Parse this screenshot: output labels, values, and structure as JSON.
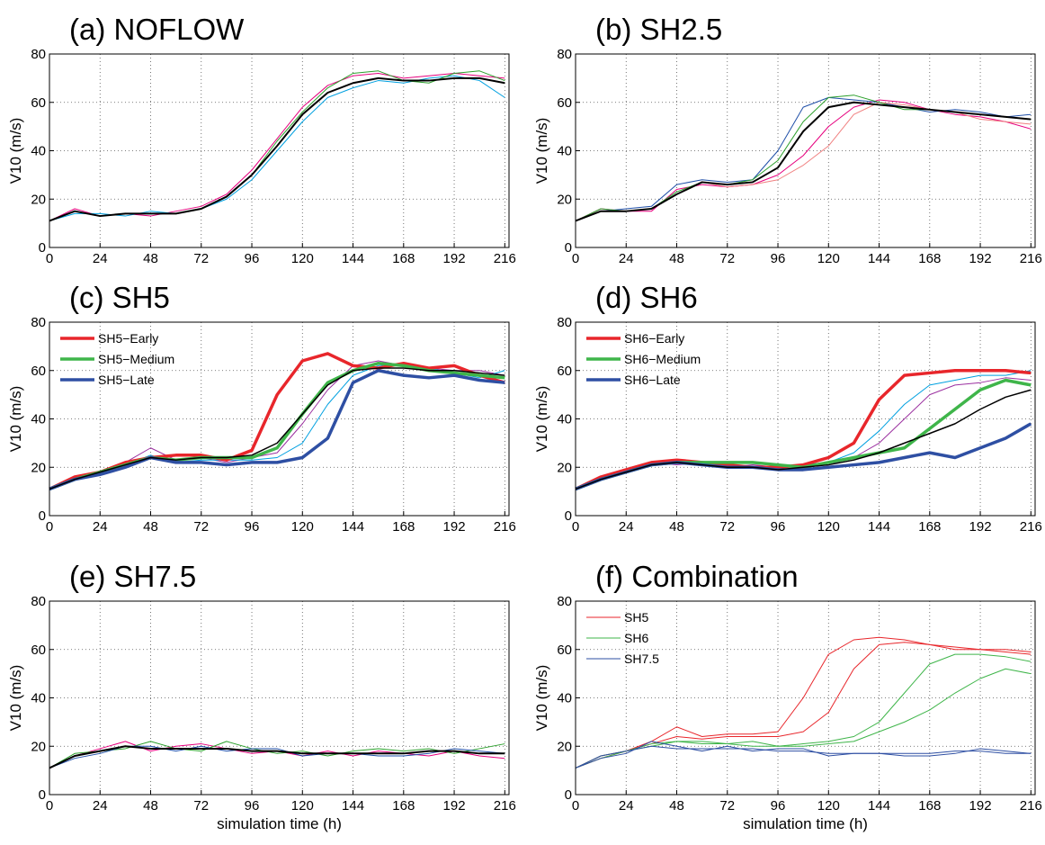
{
  "chart_data": [
    {
      "type": "line",
      "title": "(a) NOFLOW",
      "ylabel": "V10 (m/s)",
      "x": [
        0,
        12,
        24,
        36,
        48,
        60,
        72,
        84,
        96,
        108,
        120,
        132,
        144,
        156,
        168,
        180,
        192,
        204,
        216
      ],
      "xlim": [
        0,
        218
      ],
      "ylim": [
        0,
        80
      ],
      "xticks": [
        0,
        24,
        48,
        72,
        96,
        120,
        144,
        168,
        192,
        216
      ],
      "yticks": [
        0,
        20,
        40,
        60,
        80
      ],
      "grid": true,
      "series": [
        {
          "color": "#e6007e",
          "linewidth": 1,
          "values": [
            11,
            16,
            13,
            14,
            13,
            15,
            17,
            22,
            32,
            45,
            58,
            67,
            71,
            72,
            70,
            71,
            72,
            71,
            70
          ]
        },
        {
          "color": "#00a0e0",
          "linewidth": 1,
          "values": [
            11,
            14,
            14,
            13,
            15,
            14,
            16,
            20,
            28,
            40,
            52,
            62,
            66,
            69,
            68,
            70,
            71,
            69,
            62
          ]
        },
        {
          "color": "#2ca02c",
          "linewidth": 1,
          "values": [
            11,
            15,
            13,
            14,
            14,
            14,
            16,
            21,
            30,
            44,
            56,
            66,
            72,
            73,
            69,
            68,
            72,
            73,
            69
          ]
        },
        {
          "color": "#000000",
          "linewidth": 2,
          "values": [
            11,
            15,
            13,
            14,
            14,
            14,
            16,
            21,
            30,
            42,
            55,
            64,
            68,
            70,
            69,
            69,
            70,
            70,
            68
          ]
        }
      ]
    },
    {
      "type": "line",
      "title": "(b) SH2.5",
      "ylabel": "V10 (m/s)",
      "x": [
        0,
        12,
        24,
        36,
        48,
        60,
        72,
        84,
        96,
        108,
        120,
        132,
        144,
        156,
        168,
        180,
        192,
        204,
        216
      ],
      "xlim": [
        0,
        218
      ],
      "ylim": [
        0,
        80
      ],
      "xticks": [
        0,
        24,
        48,
        72,
        96,
        120,
        144,
        168,
        192,
        216
      ],
      "yticks": [
        0,
        20,
        40,
        60,
        80
      ],
      "grid": true,
      "series": [
        {
          "color": "#e6007e",
          "linewidth": 1,
          "values": [
            11,
            16,
            15,
            15,
            24,
            26,
            25,
            26,
            30,
            38,
            50,
            58,
            61,
            60,
            57,
            55,
            54,
            52,
            49
          ]
        },
        {
          "color": "#1f4fa8",
          "linewidth": 1,
          "values": [
            11,
            15,
            16,
            17,
            26,
            28,
            27,
            28,
            40,
            58,
            62,
            61,
            60,
            58,
            56,
            57,
            56,
            54,
            55
          ]
        },
        {
          "color": "#f08080",
          "linewidth": 1,
          "values": [
            11,
            15,
            15,
            16,
            22,
            27,
            25,
            26,
            28,
            34,
            42,
            55,
            60,
            59,
            57,
            56,
            53,
            52,
            51
          ]
        },
        {
          "color": "#2ca02c",
          "linewidth": 1,
          "values": [
            11,
            16,
            15,
            16,
            23,
            27,
            26,
            28,
            36,
            52,
            62,
            63,
            60,
            57,
            57,
            56,
            55,
            54,
            53
          ]
        },
        {
          "color": "#000000",
          "linewidth": 2,
          "values": [
            11,
            15,
            15,
            16,
            22,
            27,
            26,
            27,
            33,
            48,
            58,
            60,
            59,
            58,
            57,
            56,
            55,
            54,
            53
          ]
        }
      ]
    },
    {
      "type": "line",
      "title": "(c) SH5",
      "ylabel": "V10 (m/s)",
      "x": [
        0,
        12,
        24,
        36,
        48,
        60,
        72,
        84,
        96,
        108,
        120,
        132,
        144,
        156,
        168,
        180,
        192,
        204,
        216
      ],
      "xlim": [
        0,
        218
      ],
      "ylim": [
        0,
        80
      ],
      "xticks": [
        0,
        24,
        48,
        72,
        96,
        120,
        144,
        168,
        192,
        216
      ],
      "yticks": [
        0,
        20,
        40,
        60,
        80
      ],
      "grid": true,
      "legend": "upper-left",
      "series": [
        {
          "color": "#9b30a0",
          "linewidth": 1,
          "values": [
            11,
            16,
            18,
            22,
            28,
            23,
            24,
            22,
            24,
            26,
            38,
            52,
            62,
            64,
            62,
            61,
            60,
            60,
            58
          ]
        },
        {
          "color": "#00a0e0",
          "linewidth": 1,
          "values": [
            11,
            15,
            17,
            21,
            25,
            22,
            23,
            23,
            23,
            24,
            30,
            46,
            58,
            62,
            63,
            61,
            59,
            57,
            60
          ]
        },
        {
          "name": "SH5−Early",
          "color": "#e8262b",
          "linewidth": 3.5,
          "values": [
            11,
            16,
            18,
            22,
            24,
            25,
            25,
            23,
            27,
            50,
            64,
            67,
            62,
            61,
            63,
            61,
            62,
            58,
            55
          ]
        },
        {
          "name": "SH5−Medium",
          "color": "#3fb54a",
          "linewidth": 3.5,
          "values": [
            11,
            15,
            18,
            21,
            24,
            23,
            24,
            24,
            24,
            28,
            42,
            55,
            60,
            63,
            62,
            60,
            59,
            58,
            57
          ]
        },
        {
          "name": "SH5−Late",
          "color": "#2e4fa3",
          "linewidth": 3.5,
          "values": [
            11,
            15,
            17,
            20,
            24,
            22,
            22,
            21,
            22,
            22,
            24,
            32,
            55,
            60,
            58,
            57,
            58,
            56,
            55
          ]
        },
        {
          "color": "#000000",
          "linewidth": 1.5,
          "values": [
            11,
            15,
            18,
            21,
            24,
            23,
            24,
            24,
            25,
            30,
            42,
            54,
            60,
            61,
            61,
            60,
            60,
            59,
            58
          ]
        }
      ]
    },
    {
      "type": "line",
      "title": "(d) SH6",
      "ylabel": "V10 (m/s)",
      "x": [
        0,
        12,
        24,
        36,
        48,
        60,
        72,
        84,
        96,
        108,
        120,
        132,
        144,
        156,
        168,
        180,
        192,
        204,
        216
      ],
      "xlim": [
        0,
        218
      ],
      "ylim": [
        0,
        80
      ],
      "xticks": [
        0,
        24,
        48,
        72,
        96,
        120,
        144,
        168,
        192,
        216
      ],
      "yticks": [
        0,
        20,
        40,
        60,
        80
      ],
      "grid": true,
      "legend": "upper-left",
      "series": [
        {
          "color": "#00a0e0",
          "linewidth": 1,
          "values": [
            11,
            16,
            18,
            21,
            22,
            21,
            21,
            20,
            20,
            21,
            22,
            26,
            35,
            46,
            54,
            56,
            58,
            58,
            60
          ]
        },
        {
          "color": "#9b30a0",
          "linewidth": 1,
          "values": [
            11,
            15,
            18,
            22,
            21,
            22,
            20,
            21,
            20,
            20,
            21,
            24,
            30,
            40,
            50,
            54,
            55,
            57,
            56
          ]
        },
        {
          "name": "SH6−Early",
          "color": "#e8262b",
          "linewidth": 3.5,
          "values": [
            11,
            16,
            19,
            22,
            23,
            22,
            21,
            20,
            20,
            21,
            24,
            30,
            48,
            58,
            59,
            60,
            60,
            60,
            59
          ]
        },
        {
          "name": "SH6−Medium",
          "color": "#3fb54a",
          "linewidth": 3.5,
          "values": [
            11,
            15,
            18,
            21,
            22,
            22,
            22,
            22,
            21,
            20,
            22,
            24,
            26,
            28,
            36,
            44,
            52,
            56,
            54
          ]
        },
        {
          "name": "SH6−Late",
          "color": "#2e4fa3",
          "linewidth": 3.5,
          "values": [
            11,
            15,
            18,
            21,
            22,
            21,
            20,
            20,
            19,
            19,
            20,
            21,
            22,
            24,
            26,
            24,
            28,
            32,
            38
          ]
        },
        {
          "color": "#000000",
          "linewidth": 1.5,
          "values": [
            11,
            15,
            18,
            21,
            22,
            21,
            20,
            20,
            19,
            20,
            21,
            23,
            26,
            30,
            34,
            38,
            44,
            49,
            52
          ]
        }
      ]
    },
    {
      "type": "line",
      "title": "(e) SH7.5",
      "ylabel": "V10 (m/s)",
      "xlabel": "simulation time (h)",
      "x": [
        0,
        12,
        24,
        36,
        48,
        60,
        72,
        84,
        96,
        108,
        120,
        132,
        144,
        156,
        168,
        180,
        192,
        204,
        216
      ],
      "xlim": [
        0,
        218
      ],
      "ylim": [
        0,
        80
      ],
      "xticks": [
        0,
        24,
        48,
        72,
        96,
        120,
        144,
        168,
        192,
        216
      ],
      "yticks": [
        0,
        20,
        40,
        60,
        80
      ],
      "grid": true,
      "series": [
        {
          "color": "#e6007e",
          "linewidth": 1,
          "values": [
            11,
            16,
            19,
            22,
            18,
            20,
            21,
            19,
            17,
            18,
            16,
            18,
            16,
            18,
            17,
            16,
            18,
            16,
            15
          ]
        },
        {
          "color": "#2ca02c",
          "linewidth": 1,
          "values": [
            11,
            17,
            18,
            19,
            22,
            19,
            18,
            22,
            19,
            17,
            18,
            16,
            18,
            19,
            18,
            19,
            17,
            19,
            21
          ]
        },
        {
          "color": "#1f4fa8",
          "linewidth": 1,
          "values": [
            11,
            15,
            17,
            20,
            20,
            18,
            20,
            18,
            19,
            19,
            16,
            17,
            17,
            16,
            16,
            17,
            19,
            18,
            17
          ]
        },
        {
          "color": "#000000",
          "linewidth": 2,
          "values": [
            11,
            16,
            18,
            20,
            19,
            19,
            19,
            19,
            18,
            18,
            17,
            17,
            17,
            17,
            17,
            18,
            18,
            17,
            17
          ]
        }
      ]
    },
    {
      "type": "line",
      "title": "(f) Combination",
      "ylabel": "V10 (m/s)",
      "xlabel": "simulation time (h)",
      "x": [
        0,
        12,
        24,
        36,
        48,
        60,
        72,
        84,
        96,
        108,
        120,
        132,
        144,
        156,
        168,
        180,
        192,
        204,
        216
      ],
      "xlim": [
        0,
        218
      ],
      "ylim": [
        0,
        80
      ],
      "xticks": [
        0,
        24,
        48,
        72,
        96,
        120,
        144,
        168,
        192,
        216
      ],
      "yticks": [
        0,
        20,
        40,
        60,
        80
      ],
      "grid": true,
      "legend": "upper-left",
      "series": [
        {
          "name": "SH5",
          "color": "#e8262b",
          "linewidth": 1,
          "values": [
            11,
            16,
            18,
            22,
            28,
            24,
            25,
            25,
            26,
            40,
            58,
            64,
            65,
            64,
            62,
            61,
            60,
            60,
            59
          ]
        },
        {
          "color": "#e8262b",
          "linewidth": 1,
          "values": [
            11,
            15,
            18,
            21,
            24,
            23,
            24,
            24,
            24,
            26,
            34,
            52,
            62,
            63,
            62,
            60,
            60,
            59,
            58
          ]
        },
        {
          "name": "SH6",
          "color": "#3fb54a",
          "linewidth": 1,
          "values": [
            11,
            16,
            18,
            21,
            22,
            22,
            21,
            20,
            20,
            21,
            22,
            24,
            30,
            42,
            54,
            58,
            58,
            57,
            55
          ]
        },
        {
          "color": "#3fb54a",
          "linewidth": 1,
          "values": [
            11,
            15,
            18,
            20,
            22,
            21,
            21,
            22,
            20,
            20,
            21,
            22,
            26,
            30,
            35,
            42,
            48,
            52,
            50
          ]
        },
        {
          "name": "SH7.5",
          "color": "#2e4fa3",
          "linewidth": 1,
          "values": [
            11,
            16,
            18,
            20,
            19,
            19,
            19,
            19,
            18,
            18,
            17,
            17,
            17,
            17,
            17,
            18,
            18,
            17,
            17
          ]
        },
        {
          "color": "#2e4fa3",
          "linewidth": 1,
          "values": [
            11,
            15,
            17,
            22,
            20,
            18,
            20,
            18,
            19,
            19,
            16,
            17,
            17,
            16,
            16,
            17,
            19,
            18,
            17
          ]
        }
      ]
    }
  ]
}
